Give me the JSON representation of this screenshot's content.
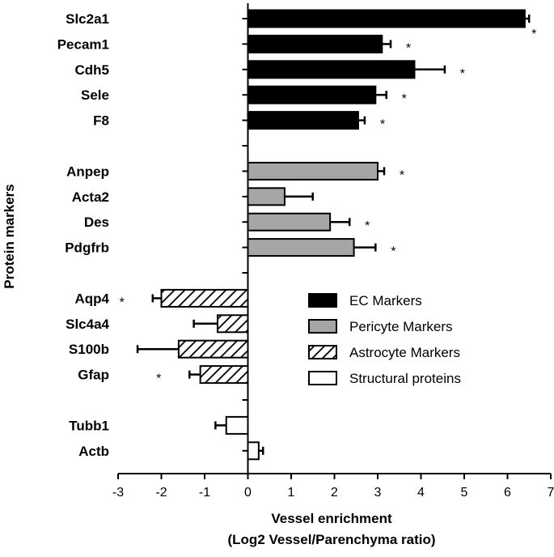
{
  "chart_data": {
    "type": "bar",
    "orientation": "horizontal",
    "xlabel": "Vessel enrichment",
    "xlabel_sub": "(Log2 Vessel/Parenchyma ratio)",
    "ylabel": "Protein markers",
    "xlim": [
      -3,
      7
    ],
    "xticks": [
      "-3",
      "-2",
      "-1",
      "0",
      "1",
      "2",
      "3",
      "4",
      "5",
      "6",
      "7"
    ],
    "grid": false,
    "legend_position": "lower-right",
    "significance_marker": "*",
    "groups": [
      {
        "name": "EC Markers",
        "fill": "#000000",
        "pattern": "solid",
        "items": [
          {
            "label": "Slc2a1",
            "value": 6.4,
            "error": 0.1,
            "sig": true
          },
          {
            "label": "Pecam1",
            "value": 3.1,
            "error": 0.2,
            "sig": true
          },
          {
            "label": "Cdh5",
            "value": 3.85,
            "error": 0.7,
            "sig": true
          },
          {
            "label": "Sele",
            "value": 2.95,
            "error": 0.25,
            "sig": true
          },
          {
            "label": "F8",
            "value": 2.55,
            "error": 0.15,
            "sig": true
          }
        ]
      },
      {
        "name": "Pericyte Markers",
        "fill": "#a6a6a6",
        "pattern": "solid",
        "items": [
          {
            "label": "Anpep",
            "value": 3.0,
            "error": 0.15,
            "sig": true
          },
          {
            "label": "Acta2",
            "value": 0.85,
            "error": 0.65,
            "sig": false
          },
          {
            "label": "Des",
            "value": 1.9,
            "error": 0.45,
            "sig": true
          },
          {
            "label": "Pdgfrb",
            "value": 2.45,
            "error": 0.5,
            "sig": true
          }
        ]
      },
      {
        "name": "Astrocyte Markers",
        "fill": "#ffffff",
        "pattern": "hatched",
        "items": [
          {
            "label": "Aqp4",
            "value": -2.0,
            "error": 0.2,
            "sig": true
          },
          {
            "label": "Slc4a4",
            "value": -0.7,
            "error": 0.55,
            "sig": false
          },
          {
            "label": "S100b",
            "value": -1.6,
            "error": 0.95,
            "sig": false
          },
          {
            "label": "Gfap",
            "value": -1.1,
            "error": 0.25,
            "sig": true
          }
        ]
      },
      {
        "name": "Structural proteins",
        "fill": "#ffffff",
        "pattern": "open",
        "items": [
          {
            "label": "Tubb1",
            "value": -0.5,
            "error": 0.25,
            "sig": false
          },
          {
            "label": "Actb",
            "value": 0.25,
            "error": 0.1,
            "sig": false
          }
        ]
      }
    ]
  }
}
